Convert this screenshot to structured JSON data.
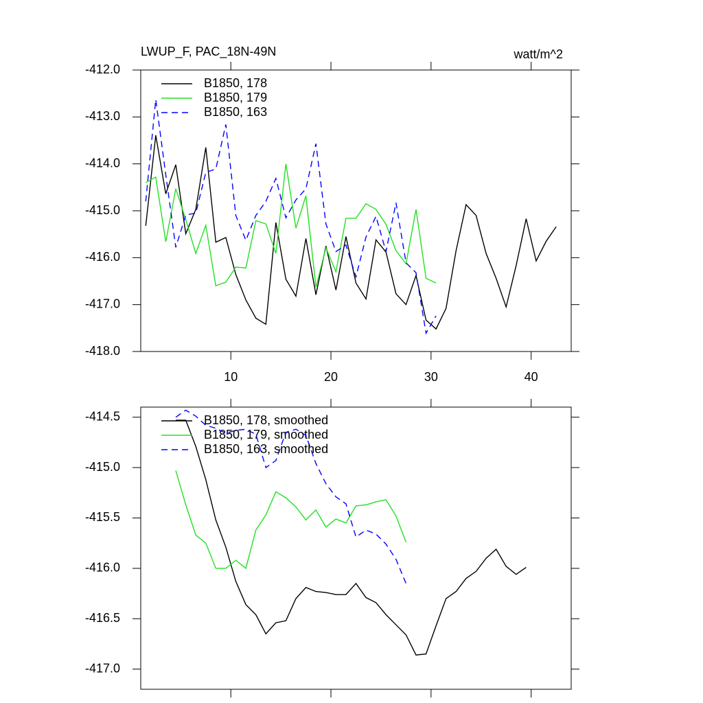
{
  "chart_data": [
    {
      "type": "line",
      "title": "LWUP_F, PAC_18N-49N",
      "units": "watt/m^2",
      "xlim": [
        1,
        44
      ],
      "xticks": [
        10,
        20,
        30,
        40
      ],
      "show_xtick_labels": true,
      "ylim": [
        -418,
        -412
      ],
      "yticks": [
        {
          "value": -418,
          "label": "-418.0"
        },
        {
          "value": -417,
          "label": "-417.0"
        },
        {
          "value": -416,
          "label": "-416.0"
        },
        {
          "value": -415,
          "label": "-415.0"
        },
        {
          "value": -414,
          "label": "-414.0"
        },
        {
          "value": -413,
          "label": "-413.0"
        },
        {
          "value": -412,
          "label": "-412.0"
        }
      ],
      "series": [
        {
          "name": "B1850, 178",
          "color": "#000000",
          "dashed": false,
          "x": [
            1.5,
            2.5,
            3.5,
            4.5,
            5.5,
            6.5,
            7.5,
            8.5,
            9.5,
            10.5,
            11.5,
            12.5,
            13.5,
            14.5,
            15.5,
            16.5,
            17.5,
            18.5,
            19.5,
            20.5,
            21.5,
            22.5,
            23.5,
            24.5,
            25.5,
            26.5,
            27.5,
            28.5,
            29.5,
            30.5,
            31.5,
            32.5,
            33.5,
            34.5,
            35.5,
            36.5,
            37.5,
            38.5,
            39.5,
            40.5,
            41.5,
            42.5
          ],
          "values": [
            -415.32,
            -413.39,
            -414.64,
            -414.02,
            -415.49,
            -414.97,
            -413.65,
            -415.67,
            -415.57,
            -416.36,
            -416.9,
            -417.29,
            -417.42,
            -415.25,
            -416.46,
            -416.82,
            -415.59,
            -416.79,
            -415.75,
            -416.69,
            -415.55,
            -416.54,
            -416.88,
            -415.62,
            -415.88,
            -416.77,
            -417.0,
            -416.38,
            -417.33,
            -417.52,
            -417.08,
            -415.85,
            -414.87,
            -415.1,
            -415.91,
            -416.44,
            -417.05,
            -416.17,
            -415.17,
            -416.07,
            -415.65,
            -415.34
          ]
        },
        {
          "name": "B1850, 179",
          "color": "#22e022",
          "dashed": false,
          "x": [
            1.5,
            2.5,
            3.5,
            4.5,
            5.5,
            6.5,
            7.5,
            8.5,
            9.5,
            10.5,
            11.5,
            12.5,
            13.5,
            14.5,
            15.5,
            16.5,
            17.5,
            18.5,
            19.5,
            20.5,
            21.5,
            22.5,
            23.5,
            24.5,
            25.5,
            26.5,
            27.5,
            28.5,
            29.5,
            30.5
          ],
          "values": [
            -414.4,
            -414.28,
            -415.66,
            -414.53,
            -415.19,
            -415.91,
            -415.31,
            -416.6,
            -416.52,
            -416.2,
            -416.22,
            -415.21,
            -415.28,
            -415.91,
            -414.0,
            -415.37,
            -414.68,
            -416.63,
            -415.79,
            -416.3,
            -415.16,
            -415.16,
            -414.85,
            -414.97,
            -415.29,
            -415.85,
            -416.13,
            -414.97,
            -416.44,
            -416.54
          ]
        },
        {
          "name": "B1850, 163",
          "color": "#0000ff",
          "dashed": true,
          "x": [
            1.5,
            2.5,
            3.5,
            4.5,
            5.5,
            6.5,
            7.5,
            8.5,
            9.5,
            10.5,
            11.5,
            12.5,
            13.5,
            14.5,
            15.5,
            16.5,
            17.5,
            18.5,
            19.5,
            20.5,
            21.5,
            22.5,
            23.5,
            24.5,
            25.5,
            26.5,
            27.5,
            28.5,
            29.5,
            30.5
          ],
          "values": [
            -414.8,
            -412.63,
            -414.23,
            -415.78,
            -415.09,
            -415.05,
            -414.18,
            -414.11,
            -413.16,
            -415.1,
            -415.63,
            -415.1,
            -414.8,
            -414.31,
            -415.15,
            -414.77,
            -414.53,
            -413.57,
            -415.28,
            -415.87,
            -415.73,
            -416.41,
            -415.56,
            -415.12,
            -415.87,
            -414.83,
            -416.11,
            -416.32,
            -417.61,
            -417.24
          ]
        }
      ]
    },
    {
      "type": "line",
      "xlim": [
        1,
        44
      ],
      "xticks": [
        10,
        20,
        30,
        40
      ],
      "show_xtick_labels": false,
      "ylim": [
        -417.2,
        -414.4
      ],
      "yticks": [
        {
          "value": -417,
          "label": "-417.0"
        },
        -416.5,
        {
          "value": -416,
          "label": "-416.0"
        },
        -415.5,
        {
          "value": -415,
          "label": "-415.0"
        },
        -414.5
      ],
      "series": [
        {
          "name": "B1850, 178, smoothed",
          "color": "#000000",
          "dashed": false,
          "x": [
            4.5,
            5.5,
            6.5,
            7.5,
            8.5,
            9.5,
            10.5,
            11.5,
            12.5,
            13.5,
            14.5,
            15.5,
            16.5,
            17.5,
            18.5,
            19.5,
            20.5,
            21.5,
            22.5,
            23.5,
            24.5,
            25.5,
            26.5,
            27.5,
            28.5,
            29.5,
            30.5,
            31.5,
            32.5,
            33.5,
            34.5,
            35.5,
            36.5,
            37.5,
            38.5,
            39.5
          ],
          "values": [
            -414.53,
            -414.53,
            -414.79,
            -415.12,
            -415.52,
            -415.79,
            -416.13,
            -416.36,
            -416.46,
            -416.65,
            -416.54,
            -416.52,
            -416.3,
            -416.19,
            -416.23,
            -416.24,
            -416.26,
            -416.26,
            -416.15,
            -416.29,
            -416.34,
            -416.46,
            -416.56,
            -416.66,
            -416.86,
            -416.85,
            -416.57,
            -416.3,
            -416.23,
            -416.1,
            -416.03,
            -415.9,
            -415.81,
            -415.98,
            -416.06,
            -415.99
          ]
        },
        {
          "name": "B1850, 179, smoothed",
          "color": "#22e022",
          "dashed": false,
          "x": [
            4.5,
            5.5,
            6.5,
            7.5,
            8.5,
            9.5,
            10.5,
            11.5,
            12.5,
            13.5,
            14.5,
            15.5,
            16.5,
            17.5,
            18.5,
            19.5,
            20.5,
            21.5,
            22.5,
            23.5,
            24.5,
            25.5,
            26.5,
            27.5
          ],
          "values": [
            -415.03,
            -415.37,
            -415.67,
            -415.75,
            -416.0,
            -416.0,
            -415.92,
            -416.0,
            -415.62,
            -415.47,
            -415.24,
            -415.3,
            -415.39,
            -415.52,
            -415.42,
            -415.59,
            -415.51,
            -415.55,
            -415.38,
            -415.37,
            -415.34,
            -415.32,
            -415.48,
            -415.74
          ]
        },
        {
          "name": "B1850, 163, smoothed",
          "color": "#0000ff",
          "dashed": true,
          "x": [
            4.5,
            5.5,
            6.5,
            7.5,
            8.5,
            9.5,
            10.5,
            11.5,
            12.5,
            13.5,
            14.5,
            15.5,
            16.5,
            17.5,
            18.5,
            19.5,
            20.5,
            21.5,
            22.5,
            23.5,
            24.5,
            25.5,
            26.5,
            27.5
          ],
          "values": [
            -414.5,
            -414.43,
            -414.49,
            -414.58,
            -414.61,
            -414.66,
            -414.63,
            -414.62,
            -414.67,
            -415.0,
            -414.93,
            -414.65,
            -414.62,
            -414.68,
            -414.96,
            -415.16,
            -415.29,
            -415.36,
            -415.69,
            -415.62,
            -415.66,
            -415.76,
            -415.91,
            -416.15
          ]
        }
      ]
    }
  ]
}
